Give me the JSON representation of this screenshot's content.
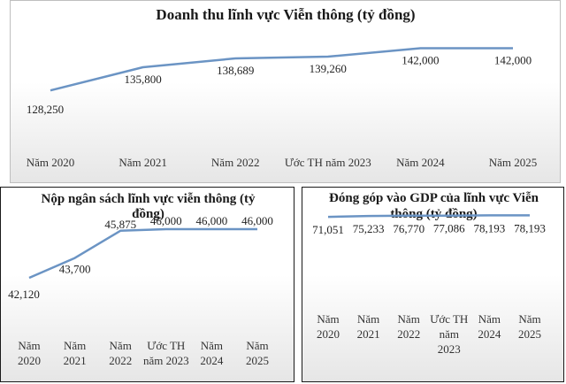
{
  "chart_data": [
    {
      "type": "line",
      "title": "Doanh thu lĩnh vực Viễn thông (tỷ đồng)",
      "categories": [
        "Năm 2020",
        "Năm 2021",
        "Năm 2022",
        "Ước TH năm 2023",
        "Năm 2024",
        "Năm 2025"
      ],
      "values": [
        128250,
        135800,
        138689,
        139260,
        142000,
        142000
      ],
      "labels": [
        "128,250",
        "135,800",
        "138,689",
        "139,260",
        "142,000",
        "142,000"
      ],
      "ylim": [
        126000,
        143000
      ],
      "line_color": "#6b94c4",
      "grid": false
    },
    {
      "type": "line",
      "title": "Nộp ngân sách lĩnh vực viễn thông (tỷ đồng)",
      "categories": [
        "Năm 2020",
        "Năm 2021",
        "Năm 2022",
        "Ước TH năm 2023",
        "Năm 2024",
        "Năm 2025"
      ],
      "values": [
        42120,
        43700,
        45875,
        46000,
        46000,
        46000
      ],
      "labels": [
        "42,120",
        "43,700",
        "45,875",
        "46,000",
        "46,000",
        "46,000"
      ],
      "ylim": [
        41700,
        46000
      ],
      "line_color": "#6b94c4",
      "grid": false
    },
    {
      "type": "line",
      "title": "Đóng góp vào GDP của lĩnh vực Viễn thông (tỷ đồng)",
      "categories": [
        "Năm 2020",
        "Năm 2021",
        "Năm 2022",
        "Ước TH năm 2023",
        "Năm 2024",
        "Năm 2025"
      ],
      "values": [
        71051,
        75233,
        76770,
        77086,
        78193,
        78193
      ],
      "labels": [
        "71,051",
        "75,233",
        "76,770",
        "77,086",
        "78,193",
        "78,193"
      ],
      "ylim": [
        50000,
        80000
      ],
      "line_color": "#6b94c4",
      "grid": false
    }
  ]
}
